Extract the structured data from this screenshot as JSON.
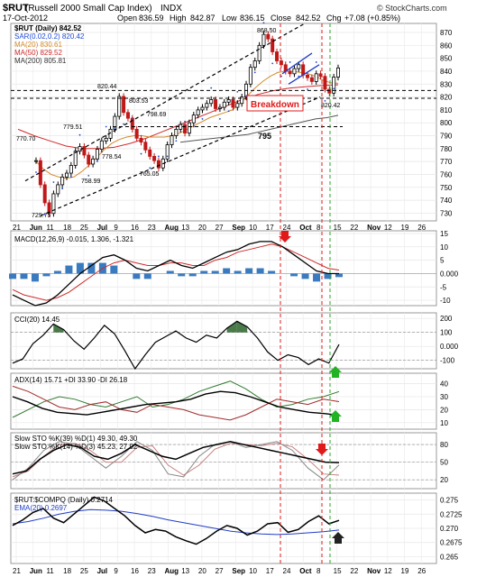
{
  "header": {
    "symbol": "$RUT",
    "name": "(Russell 2000 Small Cap Index)",
    "exchange": "INDX",
    "watermark": "© StockCharts.com",
    "date": "17-Oct-2012",
    "open_label": "Open",
    "open": "836.59",
    "high_label": "High",
    "high": "842.87",
    "low_label": "Low",
    "low": "836.15",
    "close_label": "Close",
    "close": "842.52",
    "chg_label": "Chg",
    "chg": "+7.08 (+0.85%)"
  },
  "chart_data": [
    {
      "panel": "price",
      "type": "line",
      "title": "$RUT (Daily) 842.52",
      "legend": [
        {
          "label": "$RUT (Daily) 842.52",
          "color": "#000000"
        },
        {
          "label": "SAR(0.02,0.2) 820.42",
          "color": "#1f4bd6"
        },
        {
          "label": "MA(20) 830.61",
          "color": "#d38a2e"
        },
        {
          "label": "MA(50) 829.52",
          "color": "#d02a2a"
        },
        {
          "label": "MA(200) 805.81",
          "color": "#555555"
        }
      ],
      "y_ticks": [
        730,
        740,
        750,
        760,
        770,
        780,
        790,
        800,
        810,
        820,
        830,
        840,
        850,
        860,
        870
      ],
      "ylim": [
        724,
        877
      ],
      "x_tick_labels": [
        "21",
        "Jun",
        "11",
        "18",
        "25",
        "Jul",
        "9",
        "16",
        "23",
        "Aug",
        "13",
        "20",
        "27",
        "Sep",
        "10",
        "17",
        "24",
        "Oct",
        "8",
        "15",
        "22",
        "Nov",
        "12",
        "19",
        "26"
      ],
      "series": [
        {
          "name": "$RUT (Daily)",
          "values": [
            770.7,
            752,
            738,
            729.75,
            745,
            752,
            758,
            761,
            767,
            778,
            781.6,
            775,
            768,
            772,
            779.51,
            786,
            788,
            795,
            805,
            820.44,
            808,
            803.53,
            795,
            788,
            785,
            779,
            774,
            770.7,
            765.05,
            772,
            783,
            790,
            795,
            798.69,
            792,
            800,
            806,
            810,
            812,
            815,
            818,
            811,
            812,
            816,
            818,
            812,
            815,
            820,
            830,
            843,
            848,
            860,
            868.5,
            865,
            855,
            848,
            845,
            840,
            838,
            842,
            845,
            837,
            835,
            832,
            838,
            836,
            826,
            823,
            835.44,
            842.52
          ]
        },
        {
          "name": "MA(20)",
          "values": [
            770,
            764,
            760,
            758,
            757,
            758,
            762,
            767,
            773,
            779,
            784,
            787,
            789,
            790,
            790,
            789,
            789,
            789,
            790,
            792,
            795,
            798,
            801,
            804,
            806,
            808,
            810,
            815,
            821,
            827,
            832,
            836,
            839,
            840,
            840,
            839,
            838,
            836,
            833,
            831,
            830.61
          ]
        },
        {
          "name": "MA(50)",
          "values": [
            795,
            790,
            786,
            782,
            780,
            780,
            781,
            784,
            788,
            793,
            798,
            803,
            808,
            813,
            818,
            822,
            825,
            827,
            828,
            829,
            829.52
          ]
        },
        {
          "name": "MA(200)",
          "values": [
            785,
            786,
            787,
            788,
            789,
            790,
            791,
            793,
            795,
            797,
            799,
            801,
            803,
            804,
            805.81
          ]
        }
      ],
      "annotations": [
        "868.50",
        "770.70",
        "779.51",
        "820.44",
        "803.53",
        "798.69",
        "778.54",
        "765.05",
        "758.99",
        "729.75",
        "820.42",
        "795",
        "Breakdown"
      ]
    },
    {
      "panel": "macd",
      "type": "line",
      "title": "MACD(12,26,9) -0.015, 1.306, -1.321",
      "y_ticks": [
        15,
        10,
        5,
        0,
        -5,
        -10
      ],
      "series": [
        {
          "name": "MACD(12,26,9)",
          "values": [
            -8,
            -10,
            -12,
            -11,
            -8,
            -4,
            0,
            3,
            6,
            7,
            5,
            2,
            1,
            3,
            5,
            3,
            2,
            4,
            6,
            8,
            9,
            11,
            12,
            12,
            10,
            7,
            4,
            1,
            0,
            -0.015
          ]
        },
        {
          "name": "Signal",
          "values": [
            -6,
            -8,
            -9,
            -10,
            -9,
            -7,
            -4,
            -1,
            2,
            4,
            5,
            4,
            3,
            3,
            4,
            4,
            3,
            3,
            5,
            6,
            8,
            9,
            10,
            11,
            10,
            8,
            6,
            4,
            2,
            1.306
          ]
        }
      ]
    },
    {
      "panel": "cci",
      "type": "line",
      "title": "CCI(20) 14.45",
      "y_ticks": [
        200,
        100,
        0,
        -100
      ],
      "series": [
        {
          "name": "CCI(20)",
          "values": [
            -120,
            -90,
            20,
            80,
            160,
            120,
            40,
            -20,
            60,
            150,
            90,
            -30,
            -160,
            -60,
            30,
            70,
            110,
            60,
            30,
            80,
            60,
            130,
            180,
            140,
            60,
            -40,
            -100,
            -60,
            -80,
            -130,
            -90,
            -120,
            14.45
          ]
        }
      ]
    },
    {
      "panel": "adx",
      "type": "line",
      "title": "ADX(14) 15.71 +DI 33.90 -DI 26.18",
      "y_ticks": [
        40,
        30,
        20,
        10
      ],
      "series": [
        {
          "name": "ADX(14)",
          "values": [
            30,
            26,
            21,
            18,
            17,
            16,
            18,
            20,
            22,
            24,
            25,
            26,
            28,
            32,
            34,
            33,
            30,
            26,
            22,
            20,
            18,
            17,
            15.71
          ]
        },
        {
          "name": "+DI",
          "values": [
            14,
            20,
            26,
            30,
            28,
            24,
            22,
            26,
            30,
            22,
            24,
            28,
            34,
            38,
            42,
            36,
            28,
            22,
            24,
            28,
            30,
            33.9
          ]
        },
        {
          "name": "-DI",
          "values": [
            38,
            34,
            28,
            22,
            20,
            24,
            26,
            20,
            18,
            24,
            22,
            20,
            16,
            14,
            12,
            16,
            22,
            28,
            26,
            24,
            28,
            26.18
          ]
        }
      ]
    },
    {
      "panel": "stoch",
      "type": "line",
      "title": "Slow STO %K(39) %D(1) 49.30, 49.30",
      "title2": "Slow STO %K(14) %D(3) 45.23, 27.92",
      "y_ticks": [
        80,
        50,
        20
      ],
      "series": [
        {
          "name": "Slow STO %K(39) %D(1)",
          "values": [
            30,
            35,
            55,
            70,
            80,
            75,
            60,
            55,
            65,
            80,
            70,
            60,
            55,
            65,
            75,
            80,
            85,
            80,
            75,
            70,
            65,
            60,
            55,
            50,
            49.3
          ]
        },
        {
          "name": "Slow STO %K(14) %D(3)",
          "values": [
            20,
            40,
            70,
            85,
            80,
            60,
            40,
            60,
            85,
            70,
            30,
            25,
            60,
            80,
            85,
            75,
            80,
            85,
            70,
            40,
            20,
            45.23
          ]
        },
        {
          "name": "%D(3)",
          "values": [
            25,
            35,
            60,
            80,
            82,
            70,
            50,
            50,
            75,
            78,
            45,
            28,
            45,
            72,
            82,
            80,
            78,
            82,
            76,
            55,
            30,
            27.92
          ]
        }
      ]
    },
    {
      "panel": "ratio",
      "type": "line",
      "title": "$RUT:$COMPQ (Daily) 0.2714",
      "legend": [
        {
          "label": "$RUT:$COMPQ (Daily) 0.2714",
          "color": "#000000"
        },
        {
          "label": "EMA(20) 0.2697",
          "color": "#1f3cc6"
        }
      ],
      "y_ticks": [
        0.275,
        0.2725,
        0.27,
        0.2675,
        0.265
      ],
      "series": [
        {
          "name": "$RUT:$COMPQ (Daily)",
          "values": [
            0.2705,
            0.2715,
            0.2728,
            0.2735,
            0.2718,
            0.271,
            0.2725,
            0.274,
            0.2755,
            0.2748,
            0.2735,
            0.2722,
            0.2705,
            0.2692,
            0.2698,
            0.2695,
            0.2685,
            0.2678,
            0.2672,
            0.2682,
            0.2695,
            0.2705,
            0.27,
            0.2688,
            0.2695,
            0.2708,
            0.271,
            0.2693,
            0.2698,
            0.2712,
            0.2722,
            0.2708,
            0.2714
          ]
        },
        {
          "name": "EMA(20)",
          "values": [
            0.2708,
            0.2712,
            0.2718,
            0.2725,
            0.273,
            0.2733,
            0.2732,
            0.273,
            0.2726,
            0.2721,
            0.2715,
            0.271,
            0.2705,
            0.27,
            0.2695,
            0.2692,
            0.269,
            0.2689,
            0.269,
            0.2692,
            0.2694,
            0.2697
          ]
        }
      ]
    }
  ],
  "colors": {
    "price": "#000000",
    "sar": "#1f4bd6",
    "ma20": "#d38a2e",
    "ma50": "#d02a2a",
    "ma200": "#555555",
    "macd": "#000000",
    "signal": "#d02a2a",
    "hist": "#3a7bbf",
    "cci_fill": "#4a7a4a",
    "adx": "#000000",
    "plus_di": "#2f7a2f",
    "minus_di": "#a02a2a",
    "arrow_red": "#e01a1a",
    "arrow_green": "#22b322",
    "arrow_black": "#222222"
  }
}
